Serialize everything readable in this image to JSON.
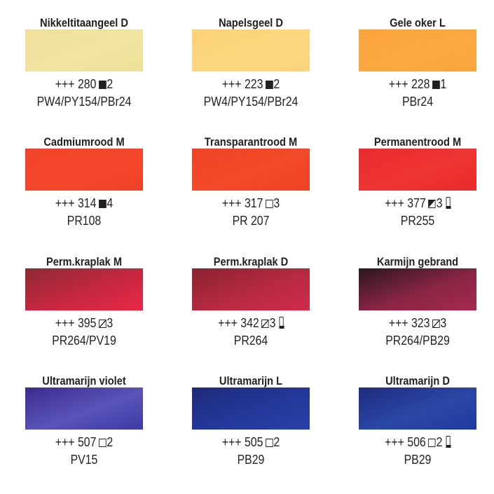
{
  "swatches": [
    {
      "name": "Nikkeltitaangeel D",
      "stars": "+++",
      "number": "280",
      "transparency": "opaque",
      "lightfast": "2",
      "tube": false,
      "pigments": "PW4/PY154/PBr24",
      "colors": [
        "#efe19c",
        "#f1e4a2",
        "#ede09a"
      ]
    },
    {
      "name": "Napelsgeel D",
      "stars": "+++",
      "number": "223",
      "transparency": "opaque",
      "lightfast": "2",
      "tube": false,
      "pigments": "PW4/PY154/PBr24",
      "colors": [
        "#fcd276",
        "#fdd680",
        "#fbd47c"
      ]
    },
    {
      "name": "Gele oker L",
      "stars": "+++",
      "number": "228",
      "transparency": "opaque",
      "lightfast": "1",
      "tube": false,
      "pigments": "PBr24",
      "colors": [
        "#f9a43a",
        "#faa940",
        "#f8a53c"
      ]
    },
    {
      "name": "Cadmiumrood M",
      "stars": "+++",
      "number": "314",
      "transparency": "opaque",
      "lightfast": "4",
      "tube": false,
      "pigments": "PR108",
      "colors": [
        "#f2432a",
        "#f4472c",
        "#ef4129"
      ]
    },
    {
      "name": "Transparantrood M",
      "stars": "+++",
      "number": "317",
      "transparency": "transparent",
      "lightfast": "3",
      "tube": false,
      "pigments": "PR 207",
      "colors": [
        "#ef4325",
        "#f24a2a",
        "#ee4224"
      ]
    },
    {
      "name": "Permanentrood M",
      "stars": "+++",
      "number": "377",
      "transparency": "semi-opaque",
      "lightfast": "3",
      "tube": true,
      "pigments": "PR255",
      "colors": [
        "#ea2b2e",
        "#ee3532",
        "#e82a2c"
      ]
    },
    {
      "name": "Perm.kraplak M",
      "stars": "+++",
      "number": "395",
      "transparency": "semi-transparent",
      "lightfast": "3",
      "tube": false,
      "pigments": "PR264/PV19",
      "colors": [
        "#8c2a33",
        "#c72740",
        "#e72848"
      ]
    },
    {
      "name": "Perm.kraplak D",
      "stars": "+++",
      "number": "342",
      "transparency": "semi-transparent",
      "lightfast": "3",
      "tube": true,
      "pigments": "PR264",
      "colors": [
        "#8a2230",
        "#b72a3f",
        "#d02c48"
      ]
    },
    {
      "name": "Karmijn gebrand",
      "stars": "+++",
      "number": "323",
      "transparency": "semi-transparent",
      "lightfast": "3",
      "tube": false,
      "pigments": "PR264/PB29",
      "colors": [
        "#2a1620",
        "#8a2544",
        "#a52a4e"
      ]
    },
    {
      "name": "Ultramarijn violet",
      "stars": "+++",
      "number": "507",
      "transparency": "transparent",
      "lightfast": "2",
      "tube": false,
      "pigments": "PV15",
      "colors": [
        "#3b2a8e",
        "#5a54b8",
        "#3c3aa6"
      ]
    },
    {
      "name": "Ultramarijn L",
      "stars": "+++",
      "number": "505",
      "transparency": "transparent",
      "lightfast": "2",
      "tube": false,
      "pigments": "PB29",
      "colors": [
        "#1e2a78",
        "#24389a",
        "#2a40a8"
      ]
    },
    {
      "name": "Ultramarijn D",
      "stars": "+++",
      "number": "506",
      "transparency": "transparent",
      "lightfast": "2",
      "tube": true,
      "pigments": "PB29",
      "colors": [
        "#1f2b7e",
        "#2a47a6",
        "#1e3aa0"
      ]
    }
  ]
}
